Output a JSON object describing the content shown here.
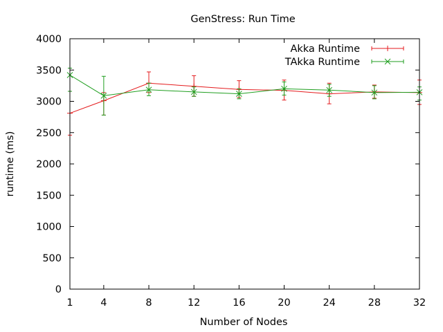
{
  "chart_data": {
    "type": "line",
    "title": "GenStress: Run Time",
    "xlabel": "Number of Nodes",
    "ylabel": "runtime (ms)",
    "x": [
      1,
      4,
      8,
      12,
      16,
      20,
      24,
      28,
      32
    ],
    "x_ticks": [
      "1",
      "4",
      "8",
      "12",
      "16",
      "20",
      "24",
      "28",
      "32"
    ],
    "xlim": [
      1,
      32
    ],
    "ylim": [
      0,
      4000
    ],
    "y_ticks": [
      "0",
      "500",
      "1000",
      "1500",
      "2000",
      "2500",
      "3000",
      "3500",
      "4000"
    ],
    "grid": false,
    "legend_position": "top-right",
    "series": [
      {
        "name": "Akka Runtime",
        "color": "#e41a1c",
        "marker": "plus",
        "values": [
          2810,
          3010,
          3290,
          3240,
          3190,
          3175,
          3120,
          3150,
          3140
        ],
        "err_low": [
          2460,
          2780,
          3140,
          3080,
          3060,
          3020,
          2960,
          3050,
          2950
        ],
        "err_high": [
          3160,
          3140,
          3470,
          3410,
          3330,
          3340,
          3290,
          3260,
          3340
        ]
      },
      {
        "name": "TAkka Runtime",
        "color": "#1f9e1f",
        "marker": "x",
        "values": [
          3420,
          3090,
          3185,
          3150,
          3120,
          3200,
          3180,
          3140,
          3145
        ],
        "err_low": [
          3160,
          2780,
          3090,
          3080,
          3040,
          3100,
          3080,
          3040,
          3020
        ],
        "err_high": [
          3530,
          3400,
          3290,
          3230,
          3200,
          3310,
          3270,
          3250,
          3230
        ]
      }
    ]
  }
}
